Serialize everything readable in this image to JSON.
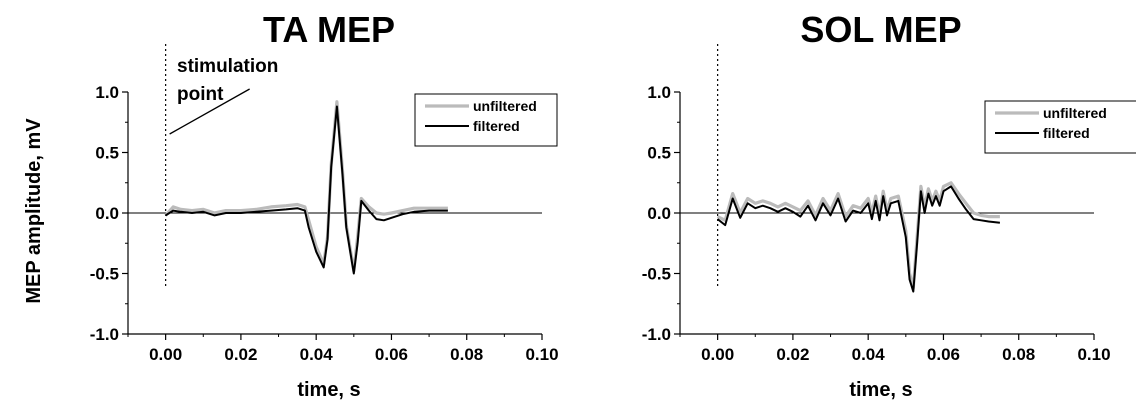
{
  "figure": {
    "ylabel": "MEP amplitude, mV",
    "legend": {
      "unfiltered": "unfiltered",
      "filtered": "filtered",
      "placement": "top-right"
    },
    "colors": {
      "unfiltered": "#bbbbbb",
      "filtered": "#000000"
    }
  },
  "chart_data": [
    {
      "type": "line",
      "title": "TA MEP",
      "xlabel": "time, s",
      "ylabel": "MEP amplitude, mV",
      "xlim": [
        -0.01,
        0.1
      ],
      "ylim": [
        -1.0,
        1.0
      ],
      "xticks": [
        "0.00",
        "0.02",
        "0.04",
        "0.06",
        "0.08",
        "0.10"
      ],
      "yticks": [
        "1.0",
        "0.5",
        "0.0",
        "-0.5",
        "-1.0"
      ],
      "annotation": {
        "line1": "stimulation",
        "line2": "point",
        "x": 0.0
      },
      "series": [
        {
          "name": "unfiltered",
          "x": [
            0.0,
            0.002,
            0.004,
            0.007,
            0.01,
            0.013,
            0.016,
            0.02,
            0.024,
            0.028,
            0.032,
            0.035,
            0.037,
            0.038,
            0.04,
            0.042,
            0.043,
            0.044,
            0.0455,
            0.047,
            0.048,
            0.05,
            0.051,
            0.052,
            0.054,
            0.056,
            0.058,
            0.06,
            0.063,
            0.066,
            0.07,
            0.075
          ],
          "y": [
            -0.02,
            0.05,
            0.03,
            0.02,
            0.03,
            0.0,
            0.02,
            0.02,
            0.03,
            0.05,
            0.06,
            0.07,
            0.05,
            -0.06,
            -0.28,
            -0.42,
            -0.2,
            0.4,
            0.92,
            0.35,
            -0.1,
            -0.48,
            -0.2,
            0.12,
            0.05,
            0.0,
            -0.01,
            0.0,
            0.02,
            0.04,
            0.04,
            0.04
          ]
        },
        {
          "name": "filtered",
          "x": [
            0.0,
            0.002,
            0.004,
            0.007,
            0.01,
            0.013,
            0.016,
            0.02,
            0.024,
            0.028,
            0.032,
            0.035,
            0.037,
            0.038,
            0.04,
            0.042,
            0.043,
            0.044,
            0.0455,
            0.047,
            0.048,
            0.05,
            0.051,
            0.052,
            0.054,
            0.056,
            0.058,
            0.06,
            0.063,
            0.066,
            0.07,
            0.075
          ],
          "y": [
            -0.02,
            0.02,
            0.01,
            0.0,
            0.01,
            -0.02,
            0.0,
            0.0,
            0.01,
            0.02,
            0.03,
            0.04,
            0.02,
            -0.12,
            -0.32,
            -0.45,
            -0.22,
            0.38,
            0.88,
            0.32,
            -0.12,
            -0.5,
            -0.25,
            0.1,
            0.02,
            -0.05,
            -0.06,
            -0.04,
            -0.01,
            0.01,
            0.02,
            0.02
          ]
        }
      ]
    },
    {
      "type": "line",
      "title": "SOL MEP",
      "xlabel": "time, s",
      "ylabel": "",
      "xlim": [
        -0.01,
        0.1
      ],
      "ylim": [
        -1.0,
        1.0
      ],
      "xticks": [
        "0.00",
        "0.02",
        "0.04",
        "0.06",
        "0.08",
        "0.10"
      ],
      "yticks": [
        "1.0",
        "0.5",
        "0.0",
        "-0.5",
        "-1.0"
      ],
      "annotation": {
        "x": 0.0
      },
      "series": [
        {
          "name": "unfiltered",
          "x": [
            0.0,
            0.002,
            0.004,
            0.006,
            0.008,
            0.01,
            0.012,
            0.014,
            0.016,
            0.018,
            0.02,
            0.022,
            0.024,
            0.026,
            0.028,
            0.03,
            0.032,
            0.034,
            0.036,
            0.038,
            0.04,
            0.041,
            0.042,
            0.043,
            0.044,
            0.045,
            0.046,
            0.048,
            0.05,
            0.051,
            0.052,
            0.053,
            0.054,
            0.055,
            0.056,
            0.057,
            0.058,
            0.059,
            0.06,
            0.062,
            0.064,
            0.066,
            0.068,
            0.07,
            0.072,
            0.075
          ],
          "y": [
            -0.03,
            -0.06,
            0.16,
            0.0,
            0.12,
            0.08,
            0.1,
            0.08,
            0.05,
            0.08,
            0.05,
            0.02,
            0.1,
            -0.02,
            0.12,
            0.02,
            0.16,
            -0.03,
            0.06,
            0.04,
            0.12,
            0.0,
            0.14,
            -0.02,
            0.18,
            0.02,
            0.12,
            0.14,
            -0.15,
            -0.5,
            -0.62,
            -0.2,
            0.22,
            0.05,
            0.2,
            0.1,
            0.18,
            0.1,
            0.22,
            0.25,
            0.16,
            0.08,
            0.0,
            -0.02,
            -0.03,
            -0.03
          ]
        },
        {
          "name": "filtered",
          "x": [
            0.0,
            0.002,
            0.004,
            0.006,
            0.008,
            0.01,
            0.012,
            0.014,
            0.016,
            0.018,
            0.02,
            0.022,
            0.024,
            0.026,
            0.028,
            0.03,
            0.032,
            0.034,
            0.036,
            0.038,
            0.04,
            0.041,
            0.042,
            0.043,
            0.044,
            0.045,
            0.046,
            0.048,
            0.05,
            0.051,
            0.052,
            0.053,
            0.054,
            0.055,
            0.056,
            0.057,
            0.058,
            0.059,
            0.06,
            0.062,
            0.064,
            0.066,
            0.068,
            0.07,
            0.072,
            0.075
          ],
          "y": [
            -0.05,
            -0.1,
            0.12,
            -0.04,
            0.08,
            0.04,
            0.06,
            0.04,
            0.01,
            0.04,
            0.01,
            -0.03,
            0.06,
            -0.06,
            0.08,
            -0.02,
            0.12,
            -0.07,
            0.02,
            0.0,
            0.08,
            -0.05,
            0.1,
            -0.06,
            0.14,
            -0.02,
            0.08,
            0.1,
            -0.2,
            -0.55,
            -0.65,
            -0.25,
            0.18,
            0.0,
            0.16,
            0.06,
            0.14,
            0.06,
            0.18,
            0.22,
            0.12,
            0.03,
            -0.05,
            -0.06,
            -0.07,
            -0.08
          ]
        }
      ]
    }
  ]
}
